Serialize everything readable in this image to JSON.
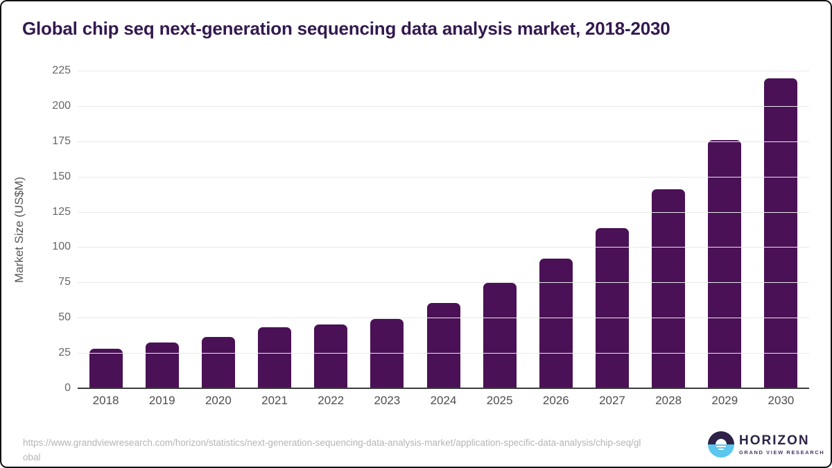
{
  "title": "Global chip seq next-generation sequencing data analysis market, 2018-2030",
  "chart_data": {
    "type": "bar",
    "categories": [
      "2018",
      "2019",
      "2020",
      "2021",
      "2022",
      "2023",
      "2024",
      "2025",
      "2026",
      "2027",
      "2028",
      "2029",
      "2030"
    ],
    "values": [
      28.1,
      32.4,
      36.2,
      43.0,
      45.4,
      48.9,
      60.3,
      74.6,
      91.9,
      113.7,
      140.9,
      175.9,
      219.5
    ],
    "title": "Global chip seq next-generation sequencing data analysis market, 2018-2030",
    "xlabel": "",
    "ylabel": "Market Size (US$M)",
    "ylim": [
      0,
      225
    ],
    "ytick_step": 25,
    "grid": true,
    "legend": "none",
    "bar_color": "#4a1156"
  },
  "footer": {
    "source_url": "https://www.grandviewresearch.com/horizon/statistics/next-generation-sequencing-data-analysis-market/application-specific-data-analysis/chip-seq/global",
    "logo": {
      "title": "HORIZON",
      "subtitle": "GRAND VIEW RESEARCH"
    }
  },
  "colors": {
    "title_text": "#33194f",
    "bar": "#4a1156",
    "y_tick_text": "#666666",
    "x_tick_text": "#4d4d4d",
    "gridline": "#e9e9e9",
    "axis_line": "#3b3b3b",
    "source_text": "#b5b5b5",
    "logo_dark": "#2e2247",
    "logo_blue": "#5bc6ee"
  }
}
